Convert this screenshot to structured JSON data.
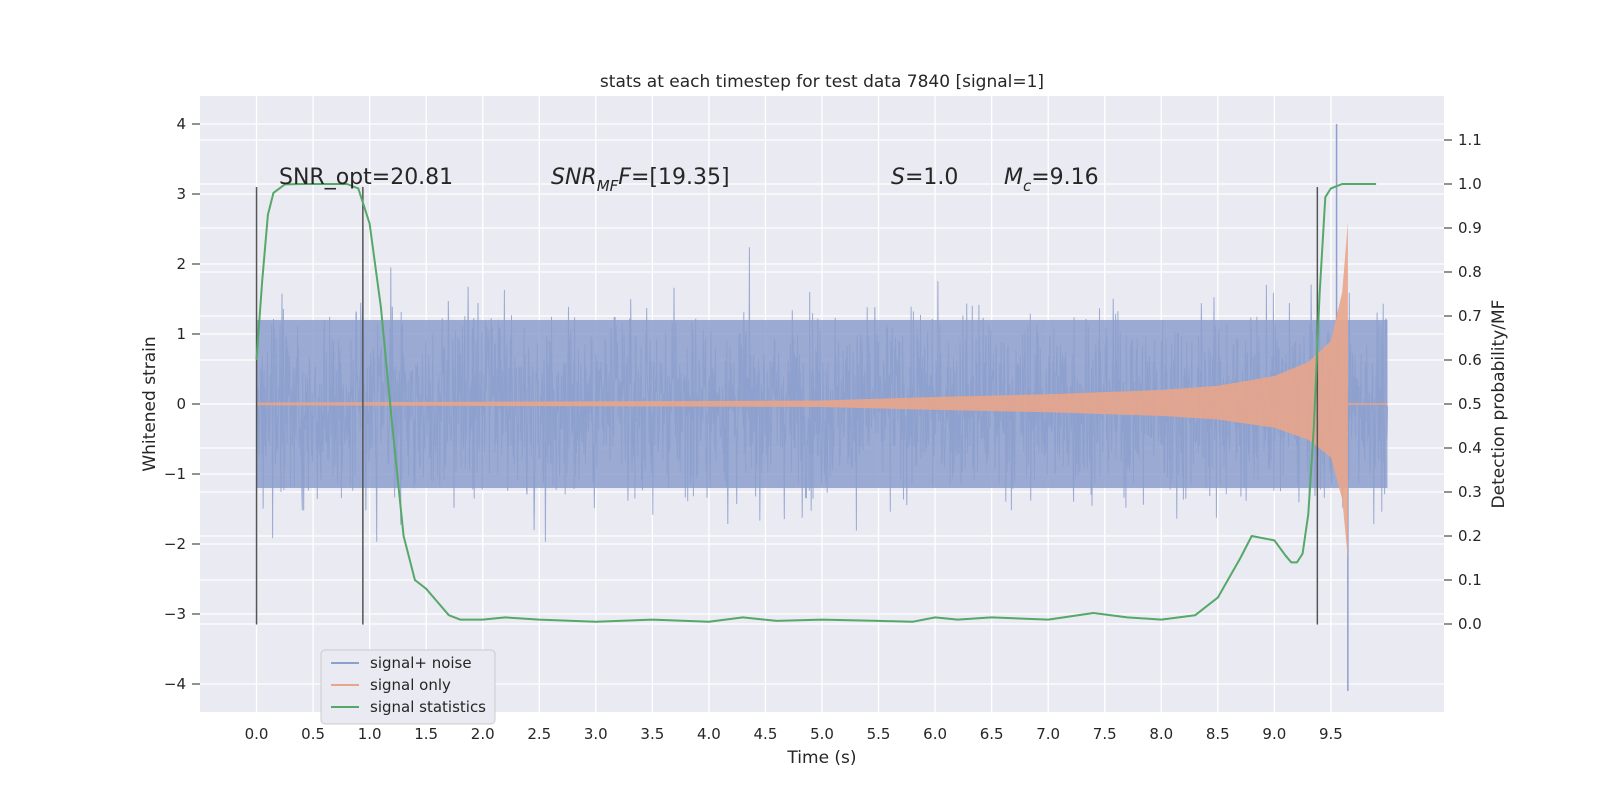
{
  "chart_data": {
    "type": "line",
    "title": "stats at each timestep for test data 7840 [signal=1]",
    "xlabel": "Time (s)",
    "ylabel": "Whitened strain",
    "ylabel_right": "Detection probability/MF",
    "xlim": [
      -0.5,
      10.5
    ],
    "ylim": [
      -4.4,
      4.4
    ],
    "ylim_right": [
      -0.2,
      1.2
    ],
    "x_ticks": [
      "0.0",
      "0.5",
      "1.0",
      "1.5",
      "2.0",
      "2.5",
      "3.0",
      "3.5",
      "4.0",
      "4.5",
      "5.0",
      "5.5",
      "6.0",
      "6.5",
      "7.0",
      "7.5",
      "8.0",
      "8.5",
      "9.0",
      "9.5"
    ],
    "y_ticks": [
      "4",
      "3",
      "2",
      "1",
      "0",
      "−1",
      "−2",
      "−3",
      "−4"
    ],
    "y_ticks_right": [
      "1.1",
      "1.0",
      "0.9",
      "0.8",
      "0.7",
      "0.6",
      "0.5",
      "0.4",
      "0.3",
      "0.2",
      "0.1",
      "0.0"
    ],
    "grid": true,
    "legend_placement": "lower-left",
    "annotations": {
      "snr_opt": "SNR_opt=20.81",
      "snr_mf_main": "SNR",
      "snr_mf_sub": "MF",
      "snr_mf_tail": "=[19.35]",
      "s_main": "S",
      "s_tail": "=1.0",
      "mc_main": "M",
      "mc_sub": "c",
      "mc_tail": "=9.16"
    },
    "vertical_markers_x": [
      0.0,
      0.94,
      9.38
    ],
    "series": [
      {
        "name": "signal+ noise",
        "color": "#8c9fcd",
        "description_values": {
          "x_start": 0.0,
          "x_end": 10.0,
          "core_amplitude": 1.2,
          "peak_min": -4.1,
          "peak_max": 4.0
        }
      },
      {
        "name": "signal only",
        "color": "#e9a58b",
        "envelope_x": [
          0.0,
          5.0,
          6.0,
          7.0,
          8.0,
          8.5,
          9.0,
          9.3,
          9.5,
          9.6,
          9.65
        ],
        "envelope_y": [
          0.02,
          0.05,
          0.1,
          0.14,
          0.2,
          0.26,
          0.4,
          0.6,
          0.9,
          1.6,
          2.6
        ]
      },
      {
        "name": "signal statistics",
        "color": "#55a868",
        "x": [
          0.0,
          0.05,
          0.1,
          0.15,
          0.25,
          0.4,
          0.6,
          0.8,
          0.9,
          1.0,
          1.1,
          1.2,
          1.3,
          1.4,
          1.5,
          1.6,
          1.7,
          1.8,
          2.0,
          2.2,
          2.5,
          3.0,
          3.5,
          4.0,
          4.3,
          4.6,
          5.0,
          5.5,
          5.8,
          6.0,
          6.2,
          6.5,
          7.0,
          7.4,
          7.7,
          8.0,
          8.3,
          8.5,
          8.7,
          8.8,
          9.0,
          9.1,
          9.15,
          9.2,
          9.25,
          9.3,
          9.35,
          9.4,
          9.45,
          9.5,
          9.6,
          9.9
        ],
        "values": [
          0.6,
          0.78,
          0.93,
          0.98,
          0.999,
          1.0,
          1.0,
          1.0,
          0.99,
          0.91,
          0.72,
          0.45,
          0.2,
          0.1,
          0.08,
          0.05,
          0.02,
          0.01,
          0.01,
          0.015,
          0.01,
          0.005,
          0.01,
          0.005,
          0.015,
          0.007,
          0.01,
          0.007,
          0.005,
          0.015,
          0.01,
          0.015,
          0.01,
          0.025,
          0.015,
          0.01,
          0.02,
          0.06,
          0.15,
          0.2,
          0.19,
          0.155,
          0.14,
          0.14,
          0.16,
          0.25,
          0.45,
          0.75,
          0.97,
          0.99,
          1.0,
          1.0
        ]
      }
    ]
  }
}
